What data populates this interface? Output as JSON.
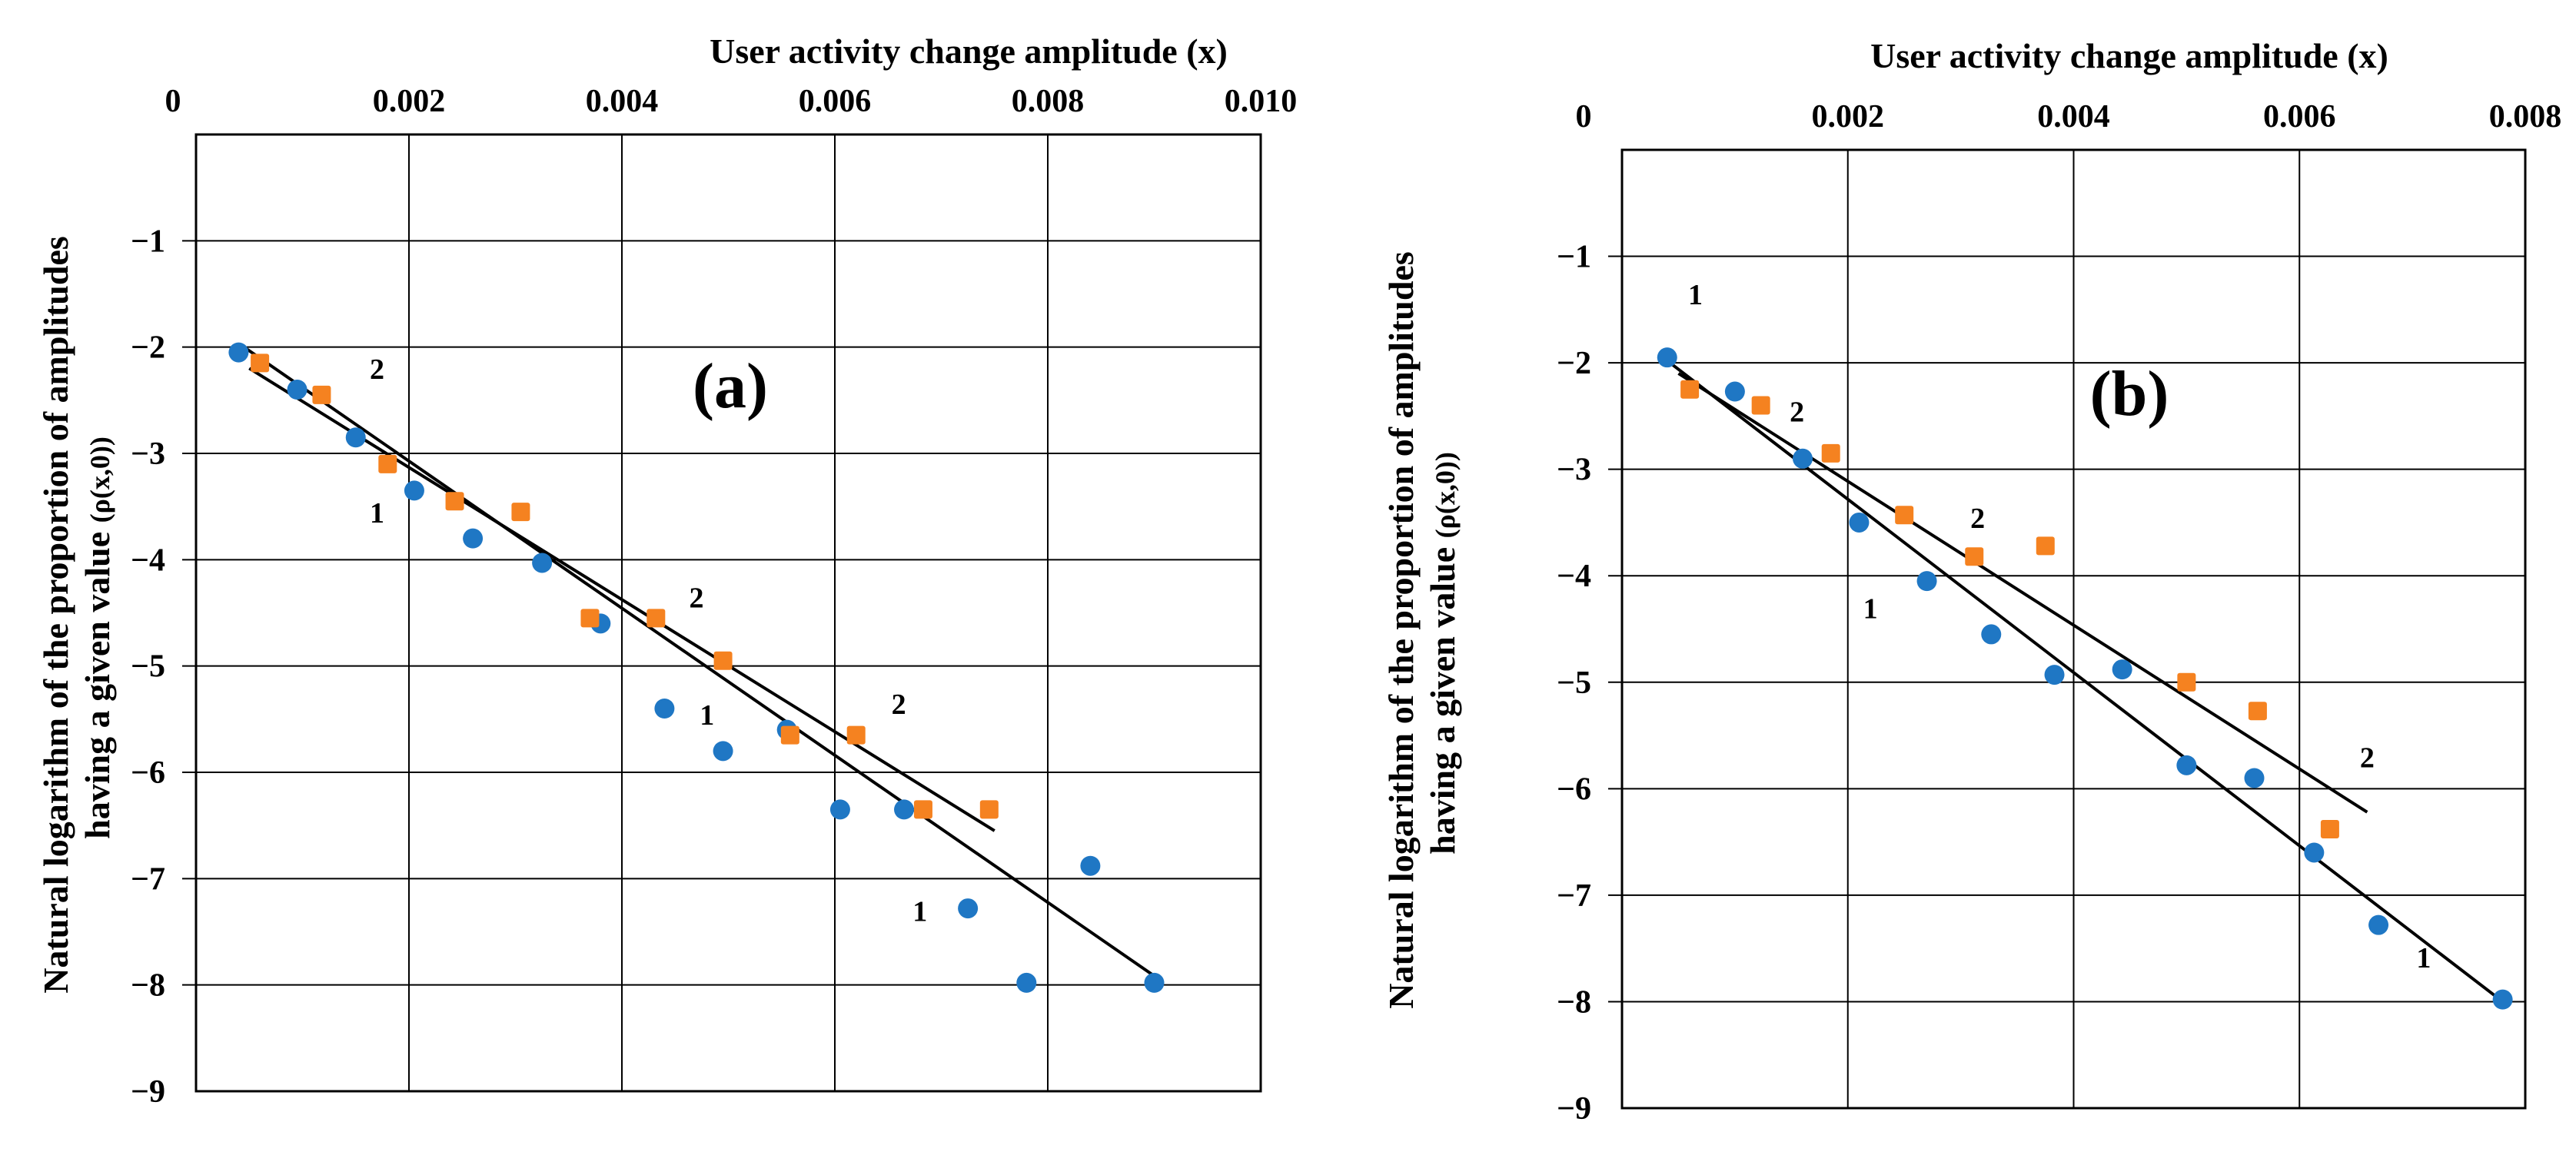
{
  "chart_data": [
    {
      "type": "scatter",
      "panel_label": "(a)",
      "title": "",
      "xlabel": "User activity change amplitude (x)",
      "ylabel_line1": "Natural logarithm of the proportion of amplitudes",
      "ylabel_line2": "having a given value",
      "ylabel_suffix": "(ρ(x,0))",
      "xlim": [
        0,
        0.01
      ],
      "ylim": [
        -9,
        0
      ],
      "x_ticks": [
        0,
        0.002,
        0.004,
        0.006,
        0.008,
        0.01
      ],
      "x_tick_labels": [
        "0",
        "0.002",
        "0.004",
        "0.006",
        "0.008",
        "0.010"
      ],
      "y_ticks": [
        -1,
        -2,
        -3,
        -4,
        -5,
        -6,
        -7,
        -8,
        -9
      ],
      "y_tick_labels": [
        "−1",
        "−2",
        "−3",
        "−4",
        "−5",
        "−6",
        "−7",
        "−8",
        "−9"
      ],
      "grid": true,
      "series": [
        {
          "name": "1",
          "color": "#1f77c4",
          "marker": "circle",
          "x": [
            0.0004,
            0.00095,
            0.0015,
            0.00205,
            0.0026,
            0.00325,
            0.0038,
            0.0044,
            0.00495,
            0.00555,
            0.00605,
            0.00665,
            0.00725,
            0.0078,
            0.0084,
            0.009
          ],
          "y": [
            -2.05,
            -2.4,
            -2.85,
            -3.35,
            -3.8,
            -4.03,
            -4.6,
            -5.4,
            -5.8,
            -5.6,
            -6.35,
            -6.35,
            -7.28,
            -7.98,
            -6.88,
            -7.98
          ],
          "fit": {
            "x": [
              0.00045,
              0.00905
            ],
            "y": [
              -2.0,
              -7.95
            ]
          }
        },
        {
          "name": "2",
          "color": "#f58220",
          "marker": "square",
          "x": [
            0.0006,
            0.00118,
            0.0018,
            0.00243,
            0.00305,
            0.0037,
            0.00432,
            0.00495,
            0.00558,
            0.0062,
            0.00683,
            0.00745
          ],
          "y": [
            -2.15,
            -2.45,
            -3.1,
            -3.45,
            -3.55,
            -4.55,
            -4.55,
            -4.95,
            -5.65,
            -5.65,
            -6.35,
            -6.35
          ],
          "fit": {
            "x": [
              0.0005,
              0.0075
            ],
            "y": [
              -2.2,
              -6.55
            ]
          }
        }
      ],
      "series_labels": [
        {
          "text": "2",
          "x": 0.0017,
          "y": -2.3
        },
        {
          "text": "1",
          "x": 0.0017,
          "y": -3.65
        },
        {
          "text": "2",
          "x": 0.0047,
          "y": -4.45
        },
        {
          "text": "1",
          "x": 0.0048,
          "y": -5.55
        },
        {
          "text": "2",
          "x": 0.0066,
          "y": -5.45
        },
        {
          "text": "1",
          "x": 0.0068,
          "y": -7.4
        }
      ]
    },
    {
      "type": "scatter",
      "panel_label": "(b)",
      "title": "",
      "xlabel": "User activity change amplitude (x)",
      "ylabel_line1": "Natural logarithm of the proportion of amplitudes",
      "ylabel_line2": "having a given value",
      "ylabel_suffix": "(ρ(x,0))",
      "xlim": [
        0,
        0.008
      ],
      "ylim": [
        -9,
        0
      ],
      "x_ticks": [
        0,
        0.002,
        0.004,
        0.006,
        0.008
      ],
      "x_tick_labels": [
        "0",
        "0.002",
        "0.004",
        "0.006",
        "0.008"
      ],
      "y_ticks": [
        -1,
        -2,
        -3,
        -4,
        -5,
        -6,
        -7,
        -8,
        -9
      ],
      "y_tick_labels": [
        "−1",
        "−2",
        "−3",
        "−4",
        "−5",
        "−6",
        "−7",
        "−8",
        "−9"
      ],
      "grid": true,
      "series": [
        {
          "name": "1",
          "color": "#1f77c4",
          "marker": "circle",
          "x": [
            0.0004,
            0.001,
            0.0016,
            0.0021,
            0.0027,
            0.00327,
            0.00383,
            0.00443,
            0.005,
            0.0056,
            0.00613,
            0.0067,
            0.0078
          ],
          "y": [
            -1.95,
            -2.27,
            -2.9,
            -3.5,
            -4.05,
            -4.55,
            -4.93,
            -4.88,
            -5.78,
            -5.9,
            -6.6,
            -7.28,
            -7.98
          ],
          "fit": {
            "x": [
              0.0004,
              0.0078
            ],
            "y": [
              -1.98,
              -8.0
            ]
          }
        },
        {
          "name": "2",
          "color": "#f58220",
          "marker": "square",
          "x": [
            0.0006,
            0.00123,
            0.00185,
            0.0025,
            0.00312,
            0.00375,
            0.005,
            0.00563,
            0.00627
          ],
          "y": [
            -2.25,
            -2.4,
            -2.85,
            -3.43,
            -3.82,
            -3.72,
            -5.0,
            -5.27,
            -6.38
          ],
          "fit": {
            "x": [
              0.0005,
              0.0066
            ],
            "y": [
              -2.1,
              -6.22
            ]
          }
        }
      ],
      "series_labels": [
        {
          "text": "1",
          "x": 0.00065,
          "y": -1.45
        },
        {
          "text": "2",
          "x": 0.00155,
          "y": -2.55
        },
        {
          "text": "2",
          "x": 0.00315,
          "y": -3.55
        },
        {
          "text": "1",
          "x": 0.0022,
          "y": -4.4
        },
        {
          "text": "2",
          "x": 0.0066,
          "y": -5.8
        },
        {
          "text": "1",
          "x": 0.0071,
          "y": -7.68
        }
      ]
    }
  ]
}
